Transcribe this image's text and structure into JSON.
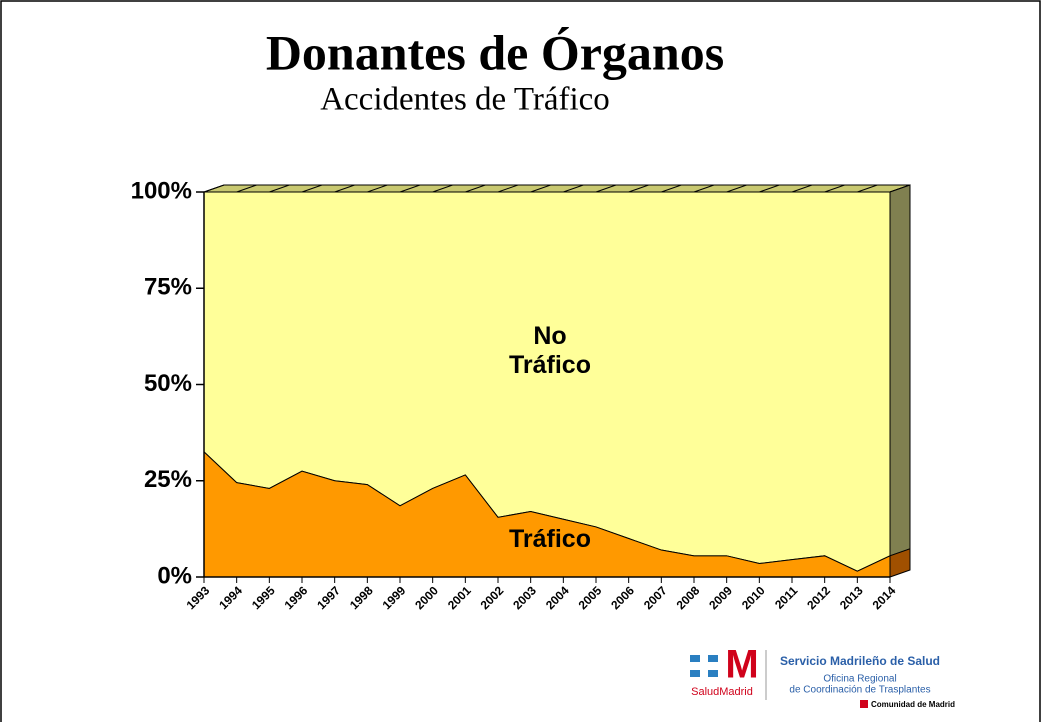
{
  "chart_data": {
    "type": "area",
    "title": "Donantes de Órganos",
    "subtitle": "Accidentes de Tráfico",
    "categories": [
      "1993",
      "1994",
      "1995",
      "1996",
      "1997",
      "1998",
      "1999",
      "2000",
      "2001",
      "2002",
      "2003",
      "2004",
      "2005",
      "2006",
      "2007",
      "2008",
      "2009",
      "2010",
      "2011",
      "2012",
      "2013",
      "2014"
    ],
    "series": [
      {
        "name": "Tráfico",
        "color": "#ff9900",
        "values": [
          32.5,
          24.5,
          23,
          27.5,
          25,
          24,
          18.5,
          23,
          26.5,
          15.5,
          17,
          15,
          13,
          10,
          7,
          5.5,
          5.5,
          3.5,
          4.5,
          5.5,
          1.5,
          5.5
        ]
      },
      {
        "name": "No Tráfico",
        "color": "#ffff99",
        "values": [
          67.5,
          75.5,
          77,
          72.5,
          75,
          76,
          81.5,
          77,
          73.5,
          84.5,
          83,
          85,
          87,
          90,
          93,
          94.5,
          94.5,
          96.5,
          95.5,
          94.5,
          98.5,
          94.5
        ]
      }
    ],
    "stacked": true,
    "ylim": [
      0,
      100
    ],
    "yticks": [
      {
        "value": 0,
        "label": "0%"
      },
      {
        "value": 25,
        "label": "25%"
      },
      {
        "value": 50,
        "label": "50%"
      },
      {
        "value": 75,
        "label": "75%"
      },
      {
        "value": 100,
        "label": "100%"
      }
    ]
  },
  "logo": {
    "name": "Servicio Madrileño de Salud",
    "line1": "Oficina Regional",
    "line2": "de Coordinación de Trasplantes",
    "region": "Comunidad de Madrid",
    "brand": "SaludMadrid"
  }
}
